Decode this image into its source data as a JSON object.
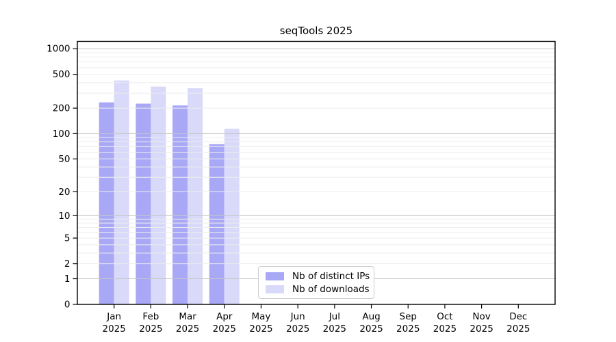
{
  "chart_data": {
    "type": "bar",
    "title": "seqTools 2025",
    "categories": [
      "Jan",
      "Feb",
      "Mar",
      "Apr",
      "May",
      "Jun",
      "Jul",
      "Aug",
      "Sep",
      "Oct",
      "Nov",
      "Dec"
    ],
    "x_sublabel": "2025",
    "series": [
      {
        "name": "Nb of distinct IPs",
        "color": "#a8a8f6",
        "values": [
          234,
          226,
          215,
          75,
          null,
          null,
          null,
          null,
          null,
          null,
          null,
          null
        ]
      },
      {
        "name": "Nb of downloads",
        "color": "#d9d9fa",
        "values": [
          424,
          359,
          343,
          114,
          null,
          null,
          null,
          null,
          null,
          null,
          null,
          null
        ]
      }
    ],
    "yscale": "log10(1+x)",
    "ylim": [
      0,
      1220
    ],
    "y_tick_values": [
      0,
      1,
      2,
      5,
      10,
      20,
      50,
      100,
      200,
      500,
      1000
    ],
    "y_major_gridlines": [
      1,
      10,
      100,
      1000
    ],
    "y_minor_gridlines": [
      2,
      3,
      4,
      5,
      6,
      7,
      8,
      9,
      20,
      30,
      40,
      50,
      60,
      70,
      80,
      90,
      200,
      300,
      400,
      500,
      600,
      700,
      800,
      900
    ],
    "grid": true,
    "legend_position": "lower center",
    "colors": {
      "major_grid": "#c6c6c6",
      "minor_grid": "#ededed",
      "axis": "#000000",
      "text": "#000000",
      "background": "#ffffff"
    }
  }
}
